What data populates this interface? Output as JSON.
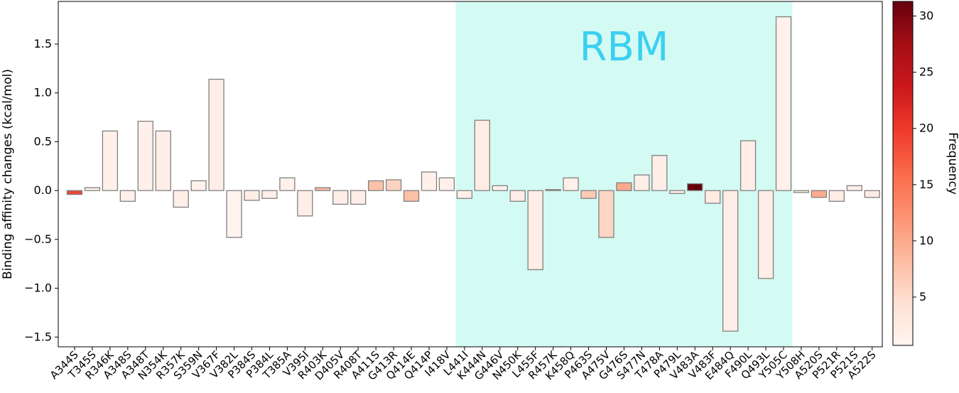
{
  "chart_data": {
    "type": "bar",
    "y_label": "Binding affinity changes (kcal/mol)",
    "categories": [
      "A344S",
      "T345S",
      "R346K",
      "A348S",
      "A348T",
      "N354K",
      "R357K",
      "S359N",
      "V367F",
      "V382L",
      "P384S",
      "P384L",
      "T385A",
      "V395I",
      "R403K",
      "D405V",
      "R408T",
      "A411S",
      "G413R",
      "Q414E",
      "Q414P",
      "I418V",
      "L441I",
      "K444N",
      "G446V",
      "N450K",
      "L455F",
      "R457K",
      "K458Q",
      "P463S",
      "A475V",
      "G476S",
      "S477N",
      "T478A",
      "P479L",
      "V483A",
      "V483F",
      "E484Q",
      "F490L",
      "Q493L",
      "Y505C",
      "Y508H",
      "A520S",
      "P521R",
      "P521S",
      "A522S"
    ],
    "values": [
      -0.04,
      0.03,
      0.61,
      -0.11,
      0.71,
      0.61,
      -0.17,
      0.1,
      1.14,
      -0.48,
      -0.1,
      -0.08,
      0.13,
      -0.26,
      0.03,
      -0.14,
      -0.14,
      0.1,
      0.11,
      -0.11,
      0.19,
      0.13,
      -0.08,
      0.72,
      0.05,
      -0.11,
      -0.81,
      0.01,
      0.13,
      -0.08,
      -0.48,
      0.08,
      0.16,
      0.36,
      -0.03,
      0.07,
      -0.13,
      -1.44,
      0.51,
      -0.9,
      1.78,
      -0.02,
      -0.07,
      -0.11,
      0.05,
      -0.07
    ],
    "colors": [
      "#e9453a",
      "#fff0ea",
      "#fff0ea",
      "#fff0ea",
      "#fff0ea",
      "#ffeee7",
      "#ffefe8",
      "#fff0ea",
      "#ffeee7",
      "#fff3ee",
      "#ffeee8",
      "#ffefe8",
      "#fff0ea",
      "#ffeee7",
      "#fcb89e",
      "#ffeee7",
      "#ffeee7",
      "#fcc1a8",
      "#fdd3c1",
      "#fcc0a7",
      "#fff0ea",
      "#fff0ea",
      "#fff0ea",
      "#ffece4",
      "#fff0ea",
      "#ffeee7",
      "#ffeee7",
      "#fff0ea",
      "#fff0ea",
      "#fdcab5",
      "#fdd5c4",
      "#fcaa8d",
      "#ffeee7",
      "#ffeee7",
      "#fff0ea",
      "#67000d",
      "#ffebe2",
      "#ffeee7",
      "#ffeee7",
      "#ffeee7",
      "#fff0ea",
      "#fff0ea",
      "#fcab8f",
      "#ffece4",
      "#ffefe8",
      "#ffece4"
    ],
    "edge_color": "#808080",
    "ylim": [
      -1.6,
      1.937
    ],
    "yticks": [
      {
        "value": -1.5,
        "label": "−1.5"
      },
      {
        "value": -1.0,
        "label": "−1.0"
      },
      {
        "value": -0.5,
        "label": "−0.5"
      },
      {
        "value": 0.0,
        "label": "0.0"
      },
      {
        "value": 0.5,
        "label": "0.5"
      },
      {
        "value": 1.0,
        "label": "1.0"
      },
      {
        "value": 1.5,
        "label": "1.5"
      }
    ],
    "highlight": {
      "label": "RBM",
      "start": "L441I",
      "end": "Y505C",
      "color": "#d4fbf3",
      "label_color": "#3ccff2"
    },
    "colorbar": {
      "label": "Frequency",
      "clim": [
        0.7,
        31.3
      ],
      "cticks": [
        5,
        10,
        15,
        20,
        25,
        30
      ],
      "colors": [
        "#fff5f0",
        "#fee0d2",
        "#fcbba1",
        "#fc9272",
        "#fb6a4a",
        "#ef3b2c",
        "#cb181d",
        "#a50f15",
        "#67000d"
      ]
    }
  }
}
